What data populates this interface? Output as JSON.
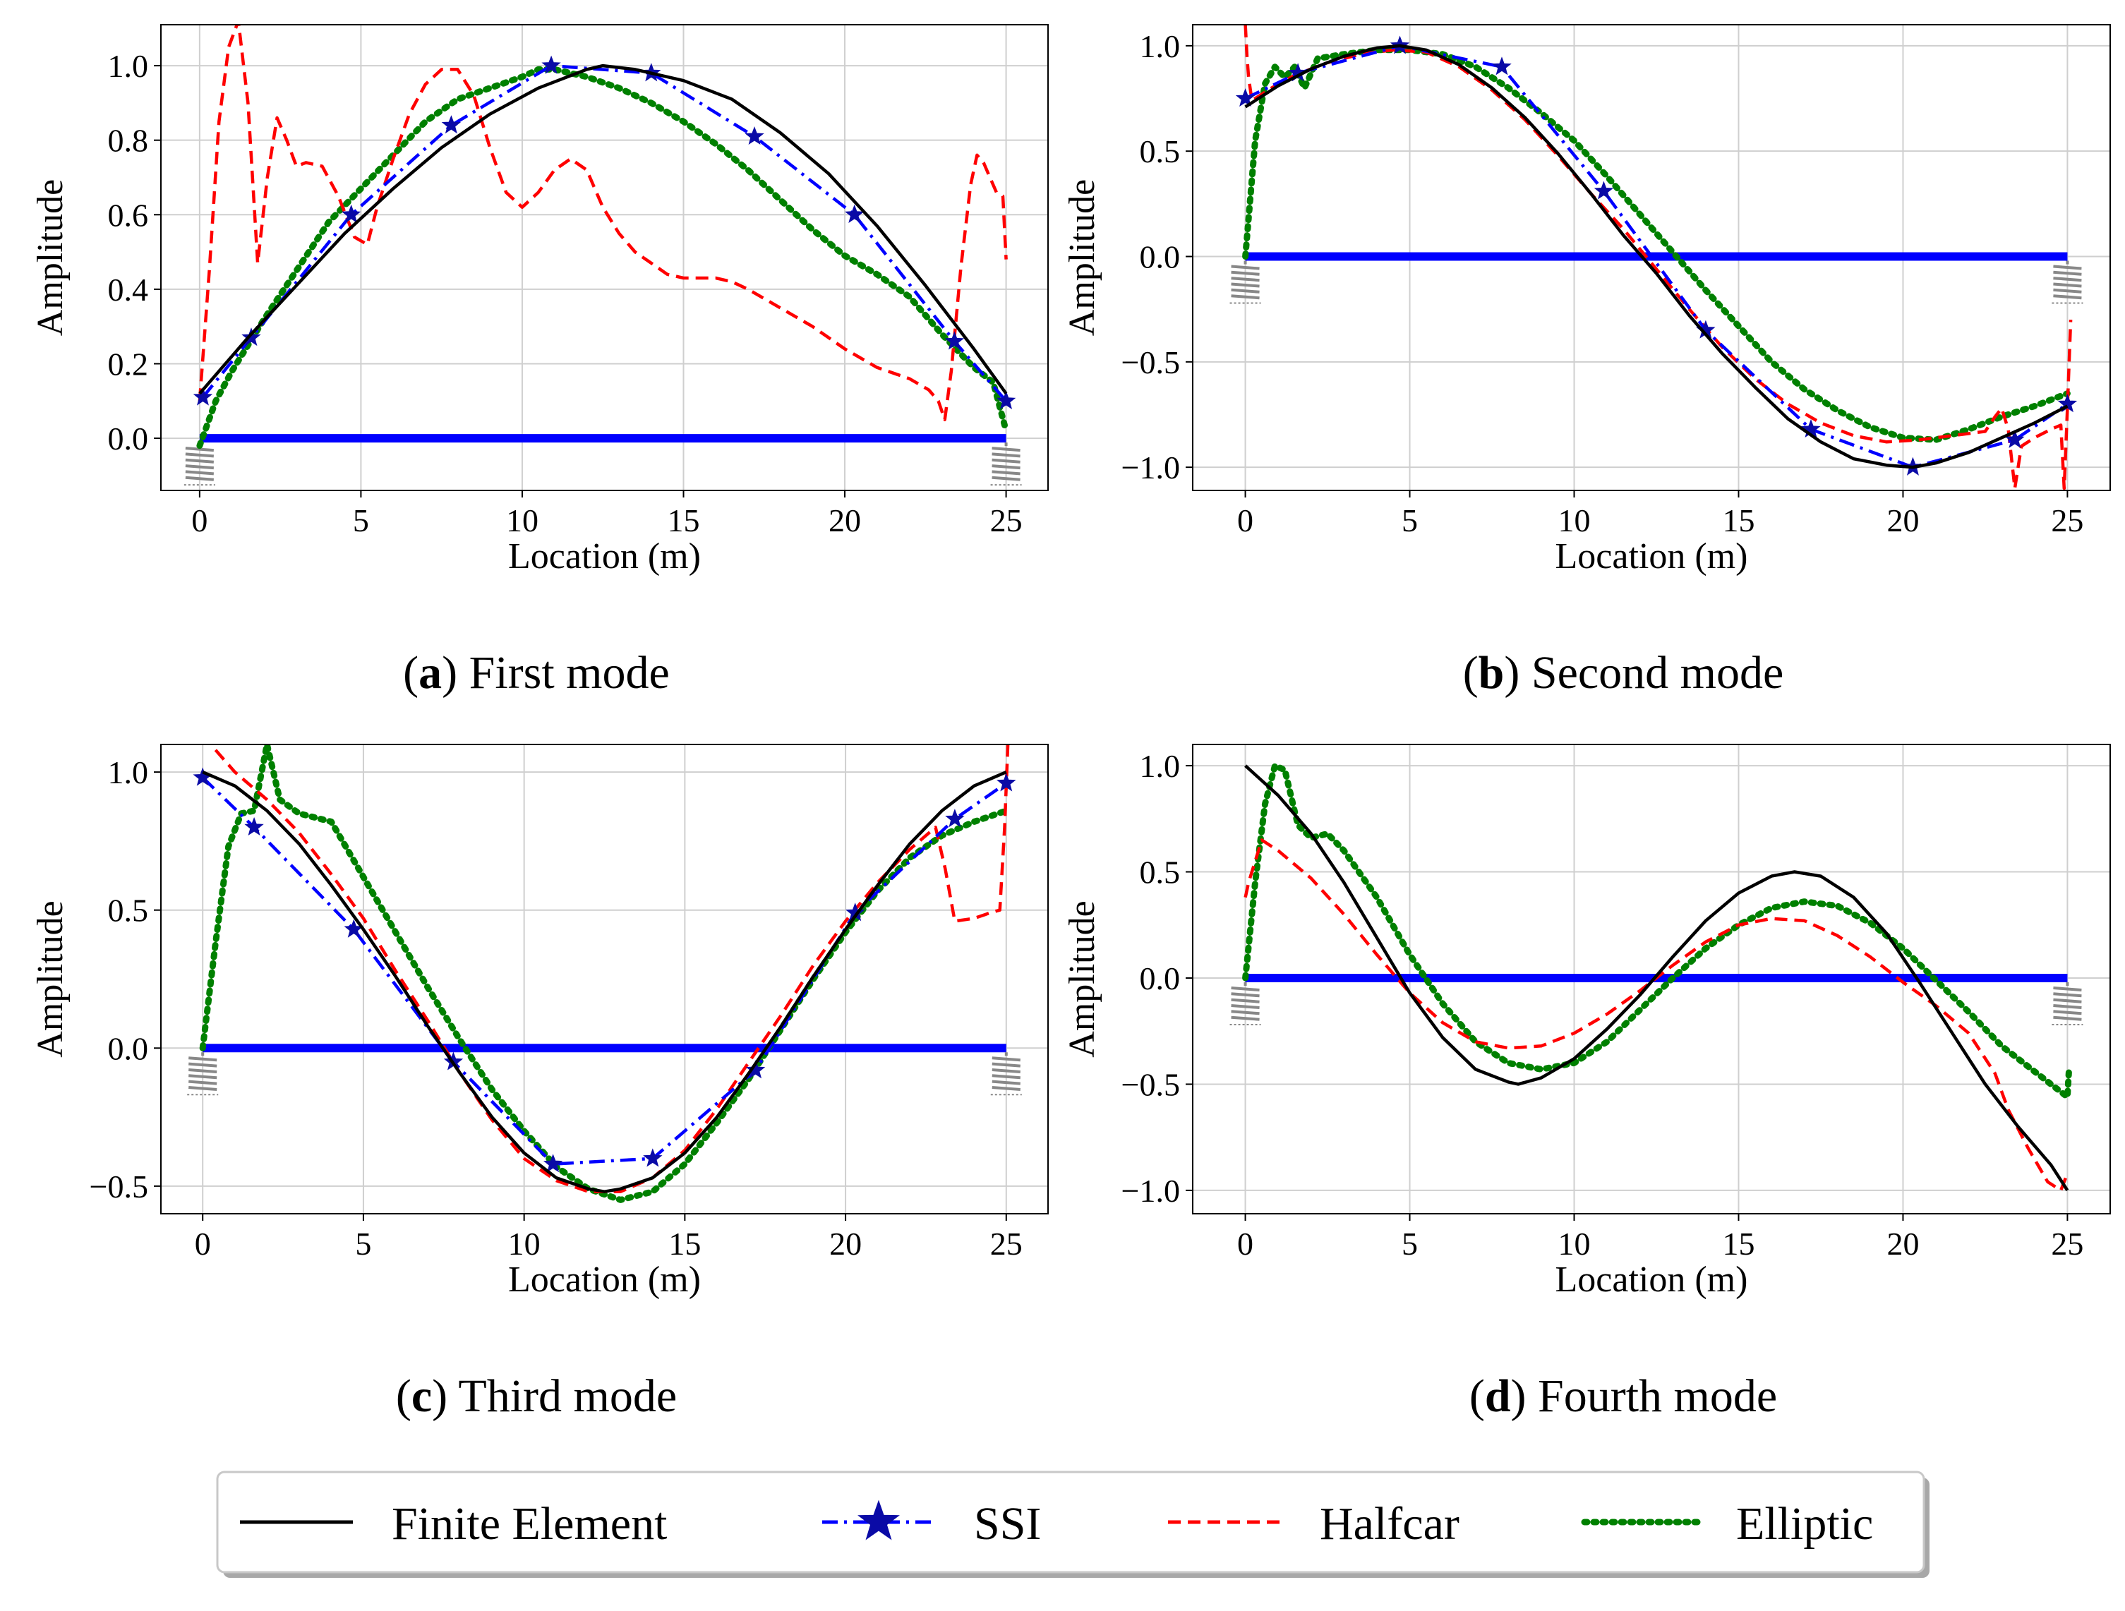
{
  "figure": {
    "legend": {
      "entries": [
        {
          "label": "Finite Element",
          "color": "#000000",
          "style": "solid",
          "marker": ""
        },
        {
          "label": "SSI",
          "color": "#0000ff",
          "style": "dashdot",
          "marker": "star"
        },
        {
          "label": "Halfcar",
          "color": "#ff0000",
          "style": "dashed",
          "marker": ""
        },
        {
          "label": "Elliptic",
          "color": "#008000",
          "style": "dotted",
          "marker": ""
        }
      ]
    },
    "colors": {
      "finite_element": "#000000",
      "ssi": "#0000ff",
      "ssi_marker": "#0a0aa6",
      "halfcar": "#ff0000",
      "elliptic": "#008000",
      "beam": "#0000ff",
      "spring": "#888888",
      "grid": "#cfcfcf"
    }
  },
  "chart_data": [
    {
      "type": "line",
      "caption_letter": "(a)",
      "caption_text": "First mode",
      "xlabel": "Location (m)",
      "ylabel": "Amplitude",
      "xlim": [
        -1.2,
        26.3
      ],
      "ylim": [
        -0.14,
        1.11
      ],
      "xticks": [
        0,
        5,
        10,
        15,
        20,
        25
      ],
      "yticks": [
        0.0,
        0.2,
        0.4,
        0.6,
        0.8,
        1.0
      ],
      "ytick_labels": [
        "0.0",
        "0.2",
        "0.4",
        "0.6",
        "0.8",
        "1.0"
      ],
      "grid": true,
      "beam": {
        "x": [
          0,
          25
        ],
        "y": 0.0
      },
      "series": [
        {
          "name": "Finite Element",
          "x": [
            0,
            1.5,
            3,
            4.5,
            6,
            7.5,
            9,
            10.5,
            12,
            12.5,
            13.5,
            15,
            16.5,
            18,
            19.5,
            21,
            22.5,
            24,
            25
          ],
          "y": [
            0.12,
            0.27,
            0.41,
            0.55,
            0.67,
            0.78,
            0.87,
            0.94,
            0.99,
            1.0,
            0.99,
            0.96,
            0.91,
            0.82,
            0.71,
            0.57,
            0.41,
            0.24,
            0.12
          ]
        },
        {
          "name": "SSI",
          "x": [
            0.1,
            1.6,
            4.7,
            7.8,
            10.9,
            14.0,
            17.2,
            20.3,
            23.4,
            25
          ],
          "y": [
            0.11,
            0.27,
            0.6,
            0.84,
            1.0,
            0.98,
            0.81,
            0.6,
            0.26,
            0.1
          ]
        },
        {
          "name": "Halfcar",
          "x": [
            0.0,
            0.3,
            0.6,
            0.9,
            1.2,
            1.5,
            1.8,
            2.1,
            2.4,
            2.7,
            3.0,
            3.3,
            3.8,
            4.3,
            4.8,
            5.2,
            5.5,
            6.0,
            6.5,
            7.0,
            7.5,
            8.0,
            8.5,
            9.0,
            9.5,
            10.0,
            10.5,
            11.0,
            11.5,
            12.0,
            12.5,
            13.0,
            13.5,
            14.0,
            14.5,
            15.0,
            15.5,
            16.0,
            16.5,
            17.0,
            18.0,
            19.0,
            20.0,
            21.0,
            22.0,
            22.6,
            22.9,
            23.1,
            23.3,
            23.6,
            23.9,
            24.1,
            24.3,
            24.5,
            24.7,
            24.9,
            25.0
          ],
          "y": [
            0.1,
            0.45,
            0.85,
            1.05,
            1.12,
            0.9,
            0.47,
            0.7,
            0.86,
            0.8,
            0.73,
            0.74,
            0.73,
            0.65,
            0.54,
            0.52,
            0.62,
            0.75,
            0.87,
            0.95,
            0.99,
            0.99,
            0.92,
            0.78,
            0.66,
            0.62,
            0.66,
            0.72,
            0.75,
            0.72,
            0.62,
            0.55,
            0.5,
            0.47,
            0.44,
            0.43,
            0.43,
            0.43,
            0.42,
            0.4,
            0.35,
            0.3,
            0.24,
            0.19,
            0.16,
            0.13,
            0.1,
            0.05,
            0.18,
            0.46,
            0.68,
            0.76,
            0.74,
            0.7,
            0.66,
            0.65,
            0.48
          ]
        },
        {
          "name": "Elliptic",
          "x": [
            0,
            0.5,
            1.0,
            2,
            3,
            4,
            5,
            6,
            7,
            8,
            9,
            10,
            10.5,
            11,
            12,
            13,
            14,
            15,
            16,
            17,
            18,
            19,
            20,
            21,
            22,
            23,
            24,
            24.6,
            25
          ],
          "y": [
            -0.02,
            0.1,
            0.18,
            0.32,
            0.45,
            0.58,
            0.67,
            0.76,
            0.85,
            0.91,
            0.94,
            0.97,
            0.99,
            0.99,
            0.97,
            0.94,
            0.9,
            0.85,
            0.79,
            0.72,
            0.64,
            0.56,
            0.49,
            0.44,
            0.38,
            0.28,
            0.19,
            0.15,
            0.02
          ]
        }
      ]
    },
    {
      "type": "line",
      "caption_letter": "(b)",
      "caption_text": "Second mode",
      "xlabel": "Location (m)",
      "ylabel": "Amplitude",
      "xlim": [
        -1.6,
        26.3
      ],
      "ylim": [
        -1.11,
        1.1
      ],
      "xticks": [
        0,
        5,
        10,
        15,
        20,
        25
      ],
      "yticks": [
        -1.0,
        -0.5,
        0.0,
        0.5,
        1.0
      ],
      "ytick_labels": [
        "−1.0",
        "−0.5",
        "0.0",
        "0.5",
        "1.0"
      ],
      "grid": true,
      "beam": {
        "x": [
          0,
          25
        ],
        "y": 0.0
      },
      "series": [
        {
          "name": "Finite Element",
          "x": [
            0,
            1,
            2,
            3,
            4,
            4.7,
            5.5,
            6.5,
            7.5,
            8.5,
            9.5,
            10.5,
            11.5,
            12.5,
            13.5,
            14.5,
            15.5,
            16.5,
            17.5,
            18.5,
            19.5,
            20.3,
            21,
            22,
            23,
            24,
            25
          ],
          "y": [
            0.71,
            0.81,
            0.89,
            0.95,
            0.99,
            1.0,
            0.98,
            0.91,
            0.8,
            0.66,
            0.49,
            0.3,
            0.1,
            -0.08,
            -0.28,
            -0.46,
            -0.62,
            -0.77,
            -0.88,
            -0.96,
            -0.99,
            -1.0,
            -0.98,
            -0.93,
            -0.86,
            -0.79,
            -0.71
          ]
        },
        {
          "name": "SSI",
          "x": [
            0,
            1.6,
            4.7,
            7.8,
            10.9,
            14.0,
            17.2,
            20.3,
            23.4,
            25
          ],
          "y": [
            0.75,
            0.87,
            1.0,
            0.9,
            0.31,
            -0.35,
            -0.82,
            -1.0,
            -0.87,
            -0.7
          ]
        },
        {
          "name": "Halfcar",
          "x": [
            0.0,
            0.05,
            0.1,
            0.2,
            0.4,
            0.8,
            1.5,
            2.5,
            3.5,
            4.5,
            5.5,
            6.5,
            7.5,
            8.5,
            9.5,
            10.5,
            11.5,
            12.5,
            13.5,
            14.5,
            15.5,
            16.5,
            17.5,
            18.5,
            19.5,
            20.5,
            21.5,
            22.5,
            22.8,
            23.0,
            23.2,
            23.4,
            23.6,
            24.0,
            24.5,
            24.8,
            24.9,
            25.0,
            25.1
          ],
          "y": [
            1.1,
            0.95,
            0.85,
            0.74,
            0.76,
            0.8,
            0.86,
            0.92,
            0.96,
            0.98,
            0.97,
            0.9,
            0.79,
            0.65,
            0.48,
            0.3,
            0.13,
            -0.06,
            -0.25,
            -0.43,
            -0.58,
            -0.7,
            -0.79,
            -0.85,
            -0.88,
            -0.87,
            -0.85,
            -0.83,
            -0.76,
            -0.72,
            -0.82,
            -1.1,
            -0.9,
            -0.86,
            -0.82,
            -0.8,
            -1.1,
            -0.72,
            -0.3
          ]
        },
        {
          "name": "Elliptic",
          "x": [
            0,
            0.3,
            0.6,
            0.9,
            1.2,
            1.5,
            1.8,
            2.2,
            2.6,
            3,
            4,
            5,
            6,
            7,
            8,
            9,
            10,
            11,
            12,
            13,
            14,
            15,
            16,
            17,
            18,
            19,
            20,
            21,
            22,
            23,
            24,
            25
          ],
          "y": [
            0.0,
            0.55,
            0.82,
            0.9,
            0.85,
            0.9,
            0.8,
            0.94,
            0.95,
            0.96,
            0.98,
            0.98,
            0.96,
            0.9,
            0.8,
            0.68,
            0.55,
            0.38,
            0.2,
            0.02,
            -0.16,
            -0.33,
            -0.5,
            -0.63,
            -0.73,
            -0.81,
            -0.86,
            -0.87,
            -0.82,
            -0.76,
            -0.71,
            -0.65
          ]
        }
      ]
    },
    {
      "type": "line",
      "caption_letter": "(c)",
      "caption_text": "Third mode",
      "xlabel": "Location (m)",
      "ylabel": "Amplitude",
      "xlim": [
        -1.3,
        26.3
      ],
      "ylim": [
        -0.6,
        1.1
      ],
      "xticks": [
        0,
        5,
        10,
        15,
        20,
        25
      ],
      "yticks": [
        -0.5,
        0.0,
        0.5,
        1.0
      ],
      "ytick_labels": [
        "−0.5",
        "0.0",
        "0.5",
        "1.0"
      ],
      "grid": true,
      "beam": {
        "x": [
          0,
          25
        ],
        "y": 0.0
      },
      "series": [
        {
          "name": "Finite Element",
          "x": [
            0,
            1,
            2,
            3,
            4,
            5,
            6,
            7,
            8,
            9,
            10,
            11,
            12,
            12.5,
            13,
            14,
            15,
            16,
            17,
            18,
            19,
            20,
            21,
            22,
            23,
            24,
            25
          ],
          "y": [
            1.0,
            0.95,
            0.86,
            0.74,
            0.59,
            0.43,
            0.26,
            0.08,
            -0.09,
            -0.25,
            -0.38,
            -0.47,
            -0.51,
            -0.52,
            -0.51,
            -0.47,
            -0.38,
            -0.25,
            -0.09,
            0.08,
            0.26,
            0.43,
            0.59,
            0.74,
            0.86,
            0.95,
            1.0
          ]
        },
        {
          "name": "SSI",
          "x": [
            0,
            1.6,
            4.7,
            7.8,
            10.9,
            14.0,
            17.2,
            20.3,
            23.4,
            25
          ],
          "y": [
            0.98,
            0.8,
            0.43,
            -0.05,
            -0.42,
            -0.4,
            -0.08,
            0.49,
            0.83,
            0.96
          ]
        },
        {
          "name": "Halfcar",
          "x": [
            0.4,
            1,
            2,
            3,
            4,
            5,
            6,
            7,
            8,
            9,
            10,
            11,
            12,
            13,
            14,
            15,
            16,
            17,
            18,
            19,
            20,
            21,
            22,
            22.8,
            23.1,
            23.4,
            24,
            24.5,
            24.8,
            24.95,
            25.05
          ],
          "y": [
            1.08,
            1.0,
            0.9,
            0.78,
            0.63,
            0.47,
            0.28,
            0.1,
            -0.09,
            -0.26,
            -0.4,
            -0.48,
            -0.52,
            -0.52,
            -0.47,
            -0.37,
            -0.22,
            -0.05,
            0.12,
            0.3,
            0.46,
            0.6,
            0.72,
            0.8,
            0.65,
            0.46,
            0.47,
            0.49,
            0.5,
            0.8,
            1.1
          ]
        },
        {
          "name": "Elliptic",
          "x": [
            0,
            0.4,
            0.8,
            1.2,
            1.6,
            2.0,
            2.4,
            3,
            4,
            5,
            6,
            7,
            8,
            9,
            10,
            11,
            12,
            13,
            14,
            15,
            16,
            17,
            18,
            19,
            20,
            21,
            22,
            23,
            24,
            25
          ],
          "y": [
            0.0,
            0.38,
            0.73,
            0.85,
            0.86,
            1.1,
            0.9,
            0.85,
            0.82,
            0.62,
            0.42,
            0.22,
            0.03,
            -0.15,
            -0.3,
            -0.43,
            -0.51,
            -0.55,
            -0.52,
            -0.42,
            -0.27,
            -0.11,
            0.07,
            0.25,
            0.42,
            0.57,
            0.69,
            0.77,
            0.82,
            0.86
          ]
        }
      ]
    },
    {
      "type": "line",
      "caption_letter": "(d)",
      "caption_text": "Fourth mode",
      "xlabel": "Location (m)",
      "ylabel": "Amplitude",
      "xlim": [
        -1.6,
        26.3
      ],
      "ylim": [
        -1.11,
        1.1
      ],
      "xticks": [
        0,
        5,
        10,
        15,
        20,
        25
      ],
      "yticks": [
        -1.0,
        -0.5,
        0.0,
        0.5,
        1.0
      ],
      "ytick_labels": [
        "−1.0",
        "−0.5",
        "0.0",
        "0.5",
        "1.0"
      ],
      "grid": true,
      "beam": {
        "x": [
          0,
          25
        ],
        "y": 0.0
      },
      "series": [
        {
          "name": "Finite Element",
          "x": [
            0,
            1,
            2,
            3,
            4,
            5,
            6,
            7,
            8,
            8.3,
            9,
            10,
            11,
            12,
            13,
            14,
            15,
            16,
            16.7,
            17.5,
            18.5,
            19.5,
            20.5,
            21.5,
            22.5,
            23.5,
            24.5,
            25
          ],
          "y": [
            1.0,
            0.86,
            0.68,
            0.45,
            0.19,
            -0.07,
            -0.28,
            -0.43,
            -0.49,
            -0.5,
            -0.47,
            -0.38,
            -0.24,
            -0.08,
            0.1,
            0.27,
            0.4,
            0.48,
            0.5,
            0.48,
            0.38,
            0.21,
            -0.02,
            -0.26,
            -0.5,
            -0.7,
            -0.88,
            -1.0
          ]
        },
        {
          "name": "Halfcar",
          "x": [
            0,
            0.1,
            0.5,
            1,
            2,
            3,
            4,
            5,
            6,
            7,
            8,
            9,
            10,
            11,
            12,
            13,
            14,
            15,
            16,
            17,
            18,
            19,
            20,
            21,
            22,
            22.8,
            23.2,
            23.8,
            24.4,
            24.8,
            25
          ],
          "y": [
            0.38,
            0.45,
            0.65,
            0.6,
            0.47,
            0.3,
            0.11,
            -0.07,
            -0.21,
            -0.3,
            -0.33,
            -0.32,
            -0.26,
            -0.17,
            -0.06,
            0.06,
            0.17,
            0.25,
            0.28,
            0.27,
            0.2,
            0.1,
            -0.02,
            -0.13,
            -0.26,
            -0.45,
            -0.62,
            -0.8,
            -0.96,
            -1.0,
            -0.92
          ]
        },
        {
          "name": "Elliptic",
          "x": [
            0,
            0.3,
            0.6,
            0.9,
            1.2,
            1.6,
            2.0,
            2.5,
            3,
            4,
            5,
            6,
            7,
            8,
            9,
            10,
            11,
            12,
            13,
            14,
            15,
            16,
            17,
            18,
            19,
            20,
            21,
            22,
            23,
            24,
            25,
            25.05
          ],
          "y": [
            0.0,
            0.45,
            0.82,
            1.0,
            0.98,
            0.72,
            0.66,
            0.68,
            0.6,
            0.38,
            0.11,
            -0.12,
            -0.3,
            -0.4,
            -0.43,
            -0.4,
            -0.3,
            -0.15,
            0.0,
            0.14,
            0.25,
            0.33,
            0.36,
            0.34,
            0.26,
            0.14,
            -0.01,
            -0.16,
            -0.32,
            -0.44,
            -0.56,
            -0.42
          ]
        }
      ]
    }
  ]
}
